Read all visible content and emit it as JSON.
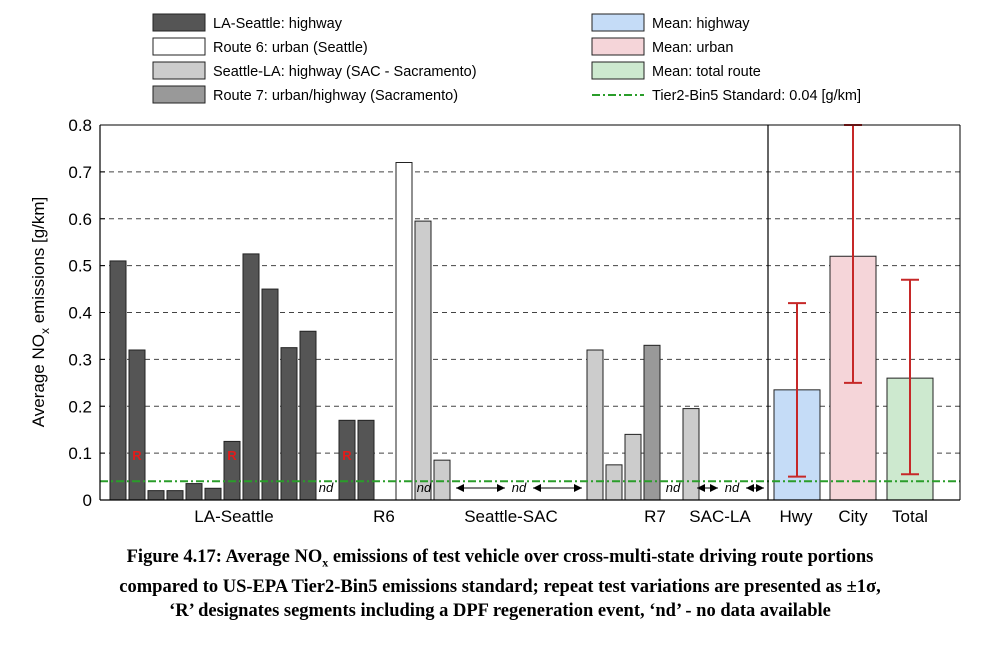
{
  "chart_data": {
    "type": "bar",
    "ylabel": "Average NO",
    "ylabel_sub": "x",
    "ylabel_tail": " emissions [g/km]",
    "ylim": [
      0,
      0.8
    ],
    "yticks": [
      "0",
      "0.1",
      "0.2",
      "0.3",
      "0.4",
      "0.5",
      "0.6",
      "0.7",
      "0.8"
    ],
    "grid": "horizontal dashed",
    "legend": {
      "left": [
        {
          "label": "LA-Seattle: highway",
          "color": "#555555"
        },
        {
          "label": "Route 6: urban (Seattle)",
          "color": "#ffffff"
        },
        {
          "label": "Seattle-LA: highway (SAC - Sacramento)",
          "color": "#cccccc"
        },
        {
          "label": "Route 7: urban/highway (Sacramento)",
          "color": "#999999"
        }
      ],
      "right": [
        {
          "label": "Mean: highway",
          "color": "#c5dcf7"
        },
        {
          "label": "Mean: urban",
          "color": "#f5d5d9"
        },
        {
          "label": "Mean: total route",
          "color": "#cde9cf"
        },
        {
          "label": "Tier2-Bin5 Standard: 0.04 [g/km]",
          "color": "#2a9d2a",
          "style": "dash-dot"
        }
      ]
    },
    "standard": 0.04,
    "series": [
      {
        "group": "LA-Seattle",
        "type": "LA-Seattle: highway",
        "values": [
          0.51,
          0.32,
          0.02,
          0.02,
          0.035,
          0.025,
          0.125,
          0.525,
          0.45,
          0.325,
          0.36
        ],
        "regeneration": [
          1,
          6
        ]
      },
      {
        "group": "R6",
        "values": [
          0.17,
          0.17,
          null,
          0.72,
          0.595
        ],
        "types": [
          "LA-Seattle: highway",
          "LA-Seattle: highway",
          null,
          "Route 6: urban (Seattle)",
          "Seattle-LA: highway (SAC - Sacramento)"
        ],
        "regeneration": [
          0
        ]
      },
      {
        "group": "Seattle-SAC",
        "values": [
          0.085
        ],
        "type": "Seattle-LA: highway (SAC - Sacramento)"
      },
      {
        "group": "R7",
        "values": [
          0.32,
          0.075,
          0.14,
          0.33
        ],
        "types": [
          "Seattle-LA: highway (SAC - Sacramento)",
          "Seattle-LA: highway (SAC - Sacramento)",
          "Seattle-LA: highway (SAC - Sacramento)",
          "Route 7: urban/highway (Sacramento)"
        ]
      },
      {
        "group": "SAC-LA",
        "values": [
          0.195
        ],
        "type": "Seattle-LA: highway (SAC - Sacramento)"
      }
    ],
    "means": [
      {
        "category": "Hwy",
        "value": 0.235,
        "err_low": 0.05,
        "err_high": 0.42
      },
      {
        "category": "City",
        "value": 0.52,
        "err_low": 0.25,
        "err_high": 0.8
      },
      {
        "category": "Total",
        "value": 0.26,
        "err_low": 0.055,
        "err_high": 0.47
      }
    ],
    "group_labels": [
      "LA-Seattle",
      "R6",
      "Seattle-SAC",
      "R7",
      "SAC-LA",
      "Hwy",
      "City",
      "Total"
    ],
    "annotation_regen": "R",
    "annotation_nd": "nd"
  },
  "caption": {
    "line1": "Figure 4.17: Average NO",
    "line1_sub": "x",
    "line1_tail": " emissions of test vehicle over cross-multi-state driving route portions",
    "line2": "compared to US-EPA Tier2-Bin5 emissions standard; repeat test variations are presented as ±1σ,",
    "line3": "‘R’ designates segments including a DPF regeneration event, ‘nd’ - no data available"
  }
}
